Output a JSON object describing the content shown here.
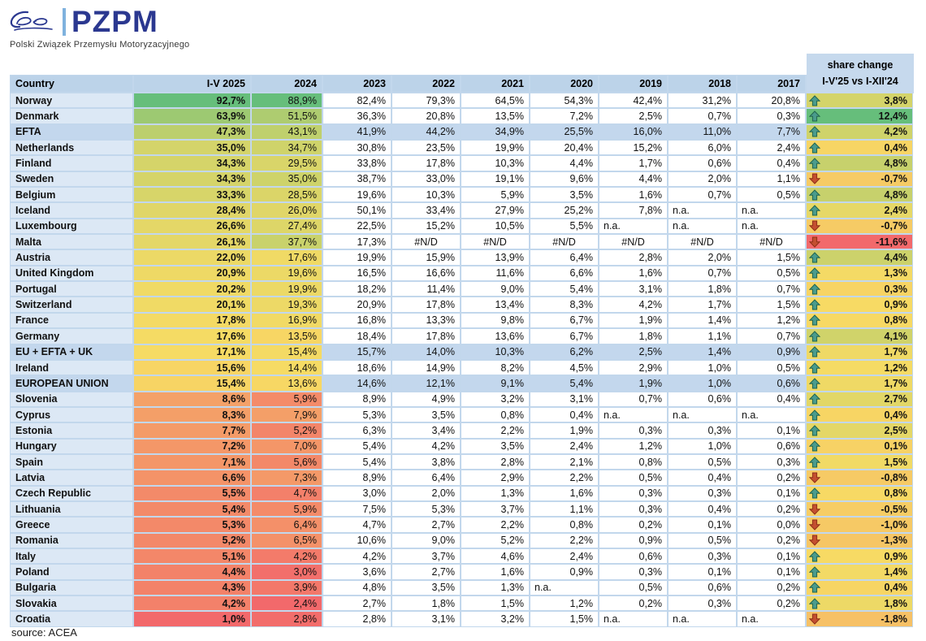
{
  "logo": {
    "brand": "PZPM",
    "tagline": "Polski Związek Przemysłu Motoryzacyjnego"
  },
  "source_note": "source: ACEA",
  "change_header": {
    "line1": "share change",
    "line2": "I-V'25 vs I-XII'24"
  },
  "colors": {
    "scale_red": "#F2696B",
    "scale_yellow": "#F7DB64",
    "scale_green": "#66BE7B",
    "up_arrow_fill": "#4A9B8C",
    "up_arrow_border": "#20644D",
    "down_arrow_fill": "#C44F30",
    "down_arrow_border": "#8E2F17",
    "header_bg": "#BCD3E9",
    "country_bg": "#DCE8F5",
    "group_row_bg": "#C3D7ED",
    "brand_blue": "#2B3890",
    "logo_bar_blue": "#7FB2DE"
  },
  "chart_data": {
    "type": "table",
    "title": "BEV share by country",
    "columns": [
      "Country",
      "I-V 2025",
      "2024",
      "2023",
      "2022",
      "2021",
      "2020",
      "2019",
      "2018",
      "2017"
    ],
    "change_column": "share change I-V'25 vs I-XII'24",
    "rows": [
      {
        "country": "Norway",
        "group": false,
        "values": [
          "92,7%",
          "88,9%",
          "82,4%",
          "79,3%",
          "64,5%",
          "54,3%",
          "42,4%",
          "31,2%",
          "20,8%"
        ],
        "change": "3,8%",
        "direction": "up"
      },
      {
        "country": "Denmark",
        "group": false,
        "values": [
          "63,9%",
          "51,5%",
          "36,3%",
          "20,8%",
          "13,5%",
          "7,2%",
          "2,5%",
          "0,7%",
          "0,3%"
        ],
        "change": "12,4%",
        "direction": "up"
      },
      {
        "country": "EFTA",
        "group": true,
        "values": [
          "47,3%",
          "43,1%",
          "41,9%",
          "44,2%",
          "34,9%",
          "25,5%",
          "16,0%",
          "11,0%",
          "7,7%"
        ],
        "change": "4,2%",
        "direction": "up"
      },
      {
        "country": "Netherlands",
        "group": false,
        "values": [
          "35,0%",
          "34,7%",
          "30,8%",
          "23,5%",
          "19,9%",
          "20,4%",
          "15,2%",
          "6,0%",
          "2,4%"
        ],
        "change": "0,4%",
        "direction": "up"
      },
      {
        "country": "Finland",
        "group": false,
        "values": [
          "34,3%",
          "29,5%",
          "33,8%",
          "17,8%",
          "10,3%",
          "4,4%",
          "1,7%",
          "0,6%",
          "0,4%"
        ],
        "change": "4,8%",
        "direction": "up"
      },
      {
        "country": "Sweden",
        "group": false,
        "values": [
          "34,3%",
          "35,0%",
          "38,7%",
          "33,0%",
          "19,1%",
          "9,6%",
          "4,4%",
          "2,0%",
          "1,1%"
        ],
        "change": "-0,7%",
        "direction": "down"
      },
      {
        "country": "Belgium",
        "group": false,
        "values": [
          "33,3%",
          "28,5%",
          "19,6%",
          "10,3%",
          "5,9%",
          "3,5%",
          "1,6%",
          "0,7%",
          "0,5%"
        ],
        "change": "4,8%",
        "direction": "up"
      },
      {
        "country": "Iceland",
        "group": false,
        "values": [
          "28,4%",
          "26,0%",
          "50,1%",
          "33,4%",
          "27,9%",
          "25,2%",
          "7,8%",
          "n.a.",
          "n.a."
        ],
        "change": "2,4%",
        "direction": "up"
      },
      {
        "country": "Luxembourg",
        "group": false,
        "values": [
          "26,6%",
          "27,4%",
          "22,5%",
          "15,2%",
          "10,5%",
          "5,5%",
          "n.a.",
          "n.a.",
          "n.a."
        ],
        "change": "-0,7%",
        "direction": "down"
      },
      {
        "country": "Malta",
        "group": false,
        "values": [
          "26,1%",
          "37,7%",
          "17,3%",
          "#N/D",
          "#N/D",
          "#N/D",
          "#N/D",
          "#N/D",
          "#N/D"
        ],
        "change": "-11,6%",
        "direction": "down"
      },
      {
        "country": "Austria",
        "group": false,
        "values": [
          "22,0%",
          "17,6%",
          "19,9%",
          "15,9%",
          "13,9%",
          "6,4%",
          "2,8%",
          "2,0%",
          "1,5%"
        ],
        "change": "4,4%",
        "direction": "up"
      },
      {
        "country": "United Kingdom",
        "group": false,
        "values": [
          "20,9%",
          "19,6%",
          "16,5%",
          "16,6%",
          "11,6%",
          "6,6%",
          "1,6%",
          "0,7%",
          "0,5%"
        ],
        "change": "1,3%",
        "direction": "up"
      },
      {
        "country": "Portugal",
        "group": false,
        "values": [
          "20,2%",
          "19,9%",
          "18,2%",
          "11,4%",
          "9,0%",
          "5,4%",
          "3,1%",
          "1,8%",
          "0,7%"
        ],
        "change": "0,3%",
        "direction": "up"
      },
      {
        "country": "Switzerland",
        "group": false,
        "values": [
          "20,1%",
          "19,3%",
          "20,9%",
          "17,8%",
          "13,4%",
          "8,3%",
          "4,2%",
          "1,7%",
          "1,5%"
        ],
        "change": "0,9%",
        "direction": "up"
      },
      {
        "country": "France",
        "group": false,
        "values": [
          "17,8%",
          "16,9%",
          "16,8%",
          "13,3%",
          "9,8%",
          "6,7%",
          "1,9%",
          "1,4%",
          "1,2%"
        ],
        "change": "0,8%",
        "direction": "up"
      },
      {
        "country": "Germany",
        "group": false,
        "values": [
          "17,6%",
          "13,5%",
          "18,4%",
          "17,8%",
          "13,6%",
          "6,7%",
          "1,8%",
          "1,1%",
          "0,7%"
        ],
        "change": "4,1%",
        "direction": "up"
      },
      {
        "country": "EU + EFTA + UK",
        "group": true,
        "values": [
          "17,1%",
          "15,4%",
          "15,7%",
          "14,0%",
          "10,3%",
          "6,2%",
          "2,5%",
          "1,4%",
          "0,9%"
        ],
        "change": "1,7%",
        "direction": "up"
      },
      {
        "country": "Ireland",
        "group": false,
        "values": [
          "15,6%",
          "14,4%",
          "18,6%",
          "14,9%",
          "8,2%",
          "4,5%",
          "2,9%",
          "1,0%",
          "0,5%"
        ],
        "change": "1,2%",
        "direction": "up"
      },
      {
        "country": "EUROPEAN UNION",
        "group": true,
        "values": [
          "15,4%",
          "13,6%",
          "14,6%",
          "12,1%",
          "9,1%",
          "5,4%",
          "1,9%",
          "1,0%",
          "0,6%"
        ],
        "change": "1,7%",
        "direction": "up"
      },
      {
        "country": "Slovenia",
        "group": false,
        "values": [
          "8,6%",
          "5,9%",
          "8,9%",
          "4,9%",
          "3,2%",
          "3,1%",
          "0,7%",
          "0,6%",
          "0,4%"
        ],
        "change": "2,7%",
        "direction": "up"
      },
      {
        "country": "Cyprus",
        "group": false,
        "values": [
          "8,3%",
          "7,9%",
          "5,3%",
          "3,5%",
          "0,8%",
          "0,4%",
          "n.a.",
          "n.a.",
          "n.a."
        ],
        "change": "0,4%",
        "direction": "up"
      },
      {
        "country": "Estonia",
        "group": false,
        "values": [
          "7,7%",
          "5,2%",
          "6,3%",
          "3,4%",
          "2,2%",
          "1,9%",
          "0,3%",
          "0,3%",
          "0,1%"
        ],
        "change": "2,5%",
        "direction": "up"
      },
      {
        "country": "Hungary",
        "group": false,
        "values": [
          "7,2%",
          "7,0%",
          "5,4%",
          "4,2%",
          "3,5%",
          "2,4%",
          "1,2%",
          "1,0%",
          "0,6%"
        ],
        "change": "0,1%",
        "direction": "up"
      },
      {
        "country": "Spain",
        "group": false,
        "values": [
          "7,1%",
          "5,6%",
          "5,4%",
          "3,8%",
          "2,8%",
          "2,1%",
          "0,8%",
          "0,5%",
          "0,3%"
        ],
        "change": "1,5%",
        "direction": "up"
      },
      {
        "country": "Latvia",
        "group": false,
        "values": [
          "6,6%",
          "7,3%",
          "8,9%",
          "6,4%",
          "2,9%",
          "2,2%",
          "0,5%",
          "0,4%",
          "0,2%"
        ],
        "change": "-0,8%",
        "direction": "down"
      },
      {
        "country": "Czech Republic",
        "group": false,
        "values": [
          "5,5%",
          "4,7%",
          "3,0%",
          "2,0%",
          "1,3%",
          "1,6%",
          "0,3%",
          "0,3%",
          "0,1%"
        ],
        "change": "0,8%",
        "direction": "up"
      },
      {
        "country": "Lithuania",
        "group": false,
        "values": [
          "5,4%",
          "5,9%",
          "7,5%",
          "5,3%",
          "3,7%",
          "1,1%",
          "0,3%",
          "0,4%",
          "0,2%"
        ],
        "change": "-0,5%",
        "direction": "down"
      },
      {
        "country": "Greece",
        "group": false,
        "values": [
          "5,3%",
          "6,4%",
          "4,7%",
          "2,7%",
          "2,2%",
          "0,8%",
          "0,2%",
          "0,1%",
          "0,0%"
        ],
        "change": "-1,0%",
        "direction": "down"
      },
      {
        "country": "Romania",
        "group": false,
        "values": [
          "5,2%",
          "6,5%",
          "10,6%",
          "9,0%",
          "5,2%",
          "2,2%",
          "0,9%",
          "0,5%",
          "0,2%"
        ],
        "change": "-1,3%",
        "direction": "down"
      },
      {
        "country": "Italy",
        "group": false,
        "values": [
          "5,1%",
          "4,2%",
          "4,2%",
          "3,7%",
          "4,6%",
          "2,4%",
          "0,6%",
          "0,3%",
          "0,1%"
        ],
        "change": "0,9%",
        "direction": "up"
      },
      {
        "country": "Poland",
        "group": false,
        "values": [
          "4,4%",
          "3,0%",
          "3,6%",
          "2,7%",
          "1,6%",
          "0,9%",
          "0,3%",
          "0,1%",
          "0,1%"
        ],
        "change": "1,4%",
        "direction": "up"
      },
      {
        "country": "Bulgaria",
        "group": false,
        "values": [
          "4,3%",
          "3,9%",
          "4,8%",
          "3,5%",
          "1,3%",
          "n.a.",
          "0,5%",
          "0,6%",
          "0,2%"
        ],
        "change": "0,4%",
        "direction": "up"
      },
      {
        "country": "Slovakia",
        "group": false,
        "values": [
          "4,2%",
          "2,4%",
          "2,7%",
          "1,8%",
          "1,5%",
          "1,2%",
          "0,2%",
          "0,3%",
          "0,2%"
        ],
        "change": "1,8%",
        "direction": "up"
      },
      {
        "country": "Croatia",
        "group": false,
        "values": [
          "1,0%",
          "2,8%",
          "2,8%",
          "3,1%",
          "3,2%",
          "1,5%",
          "n.a.",
          "n.a.",
          "n.a."
        ],
        "change": "-1,8%",
        "direction": "down"
      }
    ]
  }
}
